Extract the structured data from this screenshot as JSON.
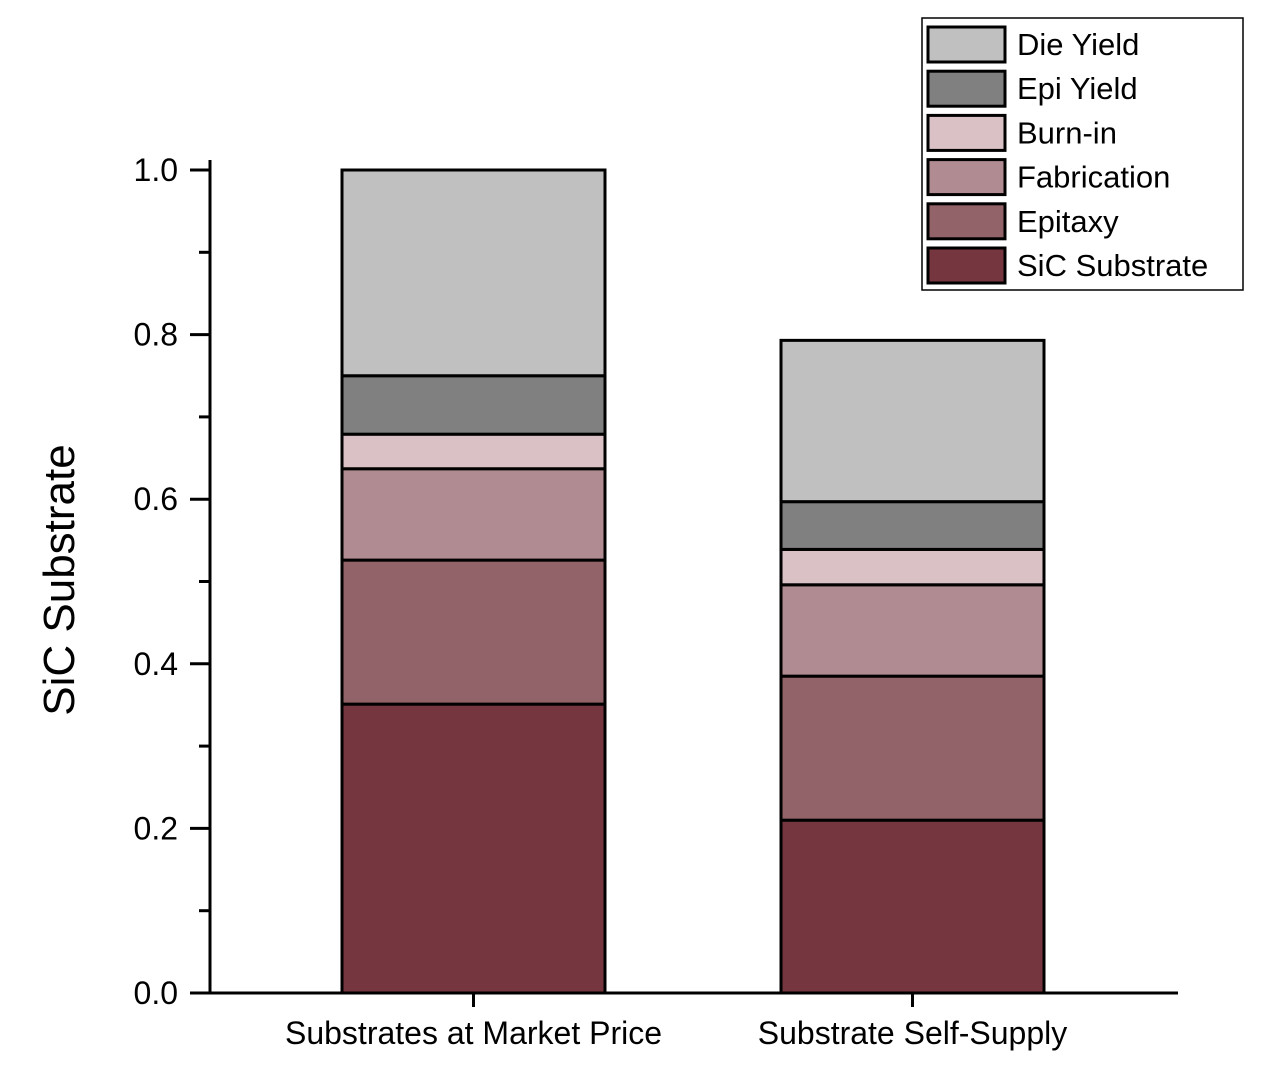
{
  "chart_data": {
    "type": "bar",
    "stacked": true,
    "title": "",
    "xlabel": "",
    "ylabel": "SiC Substrate",
    "ylim": [
      0,
      1.0
    ],
    "yticks": [
      "0.0",
      "0.2",
      "0.4",
      "0.6",
      "0.8",
      "1.0"
    ],
    "categories": [
      "Substrates at Market Price",
      "Substrate Self-Supply"
    ],
    "series": [
      {
        "name": "SiC Substrate",
        "color": "#75363f",
        "values": [
          0.351,
          0.21
        ]
      },
      {
        "name": "Epitaxy",
        "color": "#926369",
        "values": [
          0.175,
          0.175
        ]
      },
      {
        "name": "Fabrication",
        "color": "#b08b91",
        "values": [
          0.111,
          0.111
        ]
      },
      {
        "name": "Burn-in",
        "color": "#d9c1c5",
        "values": [
          0.042,
          0.043
        ]
      },
      {
        "name": "Epi Yield",
        "color": "#808080",
        "values": [
          0.071,
          0.058
        ]
      },
      {
        "name": "Die Yield",
        "color": "#c0c0c0",
        "values": [
          0.25,
          0.196
        ]
      }
    ],
    "legend_order": [
      "Die Yield",
      "Epi Yield",
      "Burn-in",
      "Fabrication",
      "Epitaxy",
      "SiC Substrate"
    ],
    "legend_placement": "top-right",
    "grid": false
  }
}
